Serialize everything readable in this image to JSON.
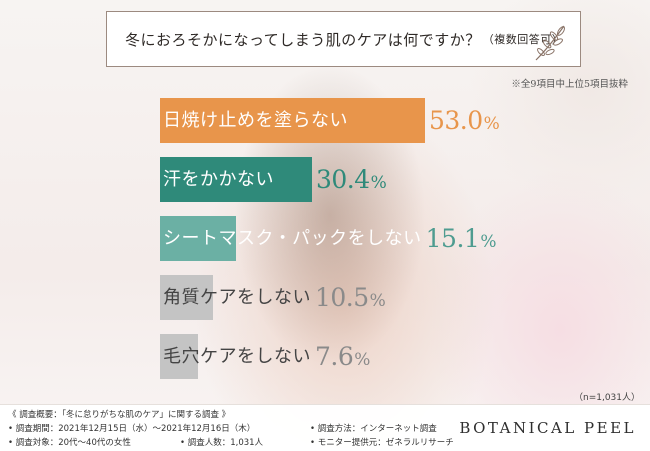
{
  "title": "冬におろそかになってしまう肌のケアは何ですか？",
  "title_sub": "（複数回答可）",
  "note": "※全9項目中上位5項目抜粋",
  "sample_size": "（n=1,031人）",
  "chart_data": {
    "type": "bar",
    "orientation": "horizontal",
    "title": "冬におろそかになってしまう肌のケアは何ですか？（複数回答可）",
    "categories": [
      "日焼け止めを塗らない",
      "汗をかかない",
      "シートマスク・パックをしない",
      "角質ケアをしない",
      "毛穴ケアをしない"
    ],
    "values": [
      53.0,
      30.4,
      15.1,
      10.5,
      7.6
    ],
    "value_labels": [
      "53.0",
      "30.4",
      "15.1",
      "10.5",
      "7.6"
    ],
    "unit": "%",
    "xlim": [
      0,
      100
    ],
    "grid": false,
    "legend": "none",
    "colors": [
      "#e8954b",
      "#2f8a7a",
      "#6bb0a4",
      "#c4c4c4",
      "#c4c4c4"
    ],
    "label_colors": [
      "#ffffff",
      "#ffffff",
      "#ffffff",
      "#444444",
      "#444444"
    ],
    "value_colors": [
      "#e8954b",
      "#2f8a7a",
      "#4e9c90",
      "#8a8a8a",
      "#8a8a8a"
    ]
  },
  "footer": {
    "overview": "《 調査概要：「冬に怠りがちな肌のケア」に関する調査 》",
    "period": "• 調査期間：2021年12月15日（水）〜2021年12月16日（木）",
    "target": "• 調査対象：20代〜40代の女性",
    "count": "• 調査人数：1,031人",
    "method": "• 調査方法：インターネット調査",
    "provider": "• モニター提供元：ゼネラルリサーチ",
    "brand": "BOTANICAL PEEL"
  }
}
